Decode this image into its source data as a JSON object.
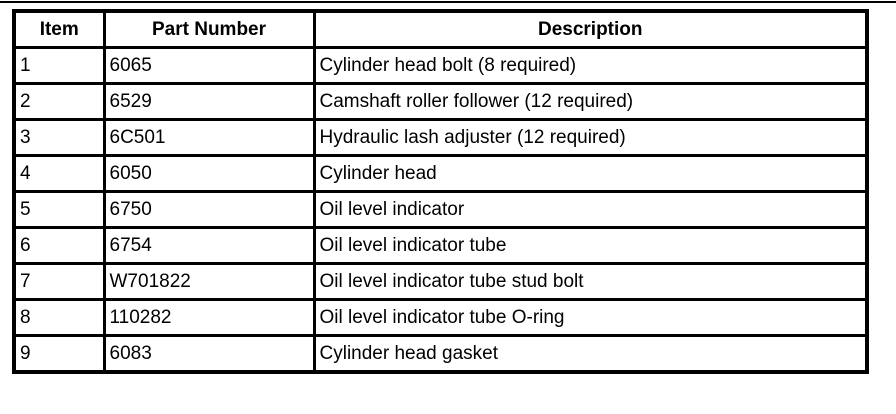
{
  "table": {
    "headers": [
      "Item",
      "Part Number",
      "Description"
    ],
    "rows": [
      [
        "1",
        "6065",
        "Cylinder head bolt (8 required)"
      ],
      [
        "2",
        "6529",
        "Camshaft roller follower (12 required)"
      ],
      [
        "3",
        "6C501",
        "Hydraulic lash adjuster (12 required)"
      ],
      [
        "4",
        "6050",
        "Cylinder head"
      ],
      [
        "5",
        "6750",
        "Oil level indicator"
      ],
      [
        "6",
        "6754",
        "Oil level indicator tube"
      ],
      [
        "7",
        "W701822",
        "Oil level indicator tube stud bolt"
      ],
      [
        "8",
        "110282",
        "Oil level indicator tube O-ring"
      ],
      [
        "9",
        "6083",
        "Cylinder head gasket"
      ]
    ]
  }
}
